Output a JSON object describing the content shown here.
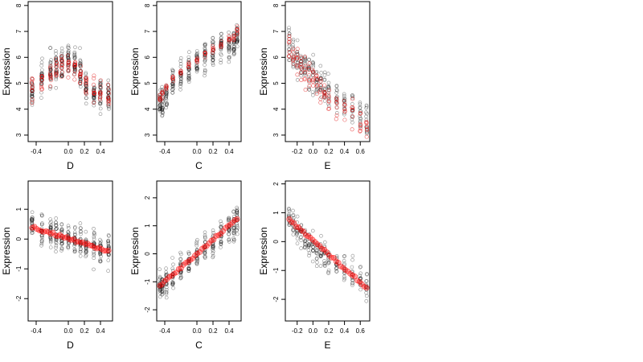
{
  "chart_data": [
    {
      "type": "scatter",
      "xlabel": "D",
      "ylabel": "Expression",
      "xlim": [
        -0.5,
        0.55
      ],
      "ylim": [
        2.75,
        8.15
      ],
      "xticks": [
        -0.4,
        0.0,
        0.2,
        0.4
      ],
      "xtick_labels": [
        "-0.4",
        "0.0",
        "0.2",
        "0.4"
      ],
      "yticks": [
        3,
        4,
        5,
        6,
        7,
        8
      ],
      "ytick_labels": [
        "3",
        "4",
        "5",
        "6",
        "7",
        "8"
      ],
      "x_levels": [
        -0.45,
        -0.33,
        -0.22,
        -0.15,
        -0.08,
        0.0,
        0.08,
        0.15,
        0.22,
        0.32,
        0.4,
        0.5
      ],
      "black_center": [
        4.7,
        5.1,
        5.5,
        5.6,
        5.7,
        5.9,
        5.8,
        5.5,
        5.0,
        4.6,
        4.6,
        4.5
      ],
      "black_spread": 1.1,
      "red_center": [
        4.8,
        5.0,
        5.4,
        5.6,
        5.6,
        5.7,
        5.6,
        5.4,
        5.0,
        4.8,
        4.6,
        4.5
      ],
      "red_spread": 0.9,
      "points_per_level": 26,
      "red_per_level": 10,
      "fit": null
    },
    {
      "type": "scatter",
      "xlabel": "C",
      "ylabel": "Expression",
      "xlim": [
        -0.5,
        0.55
      ],
      "ylim": [
        2.75,
        8.15
      ],
      "xticks": [
        -0.4,
        0.0,
        0.2,
        0.4
      ],
      "xtick_labels": [
        "-0.4",
        "0.0",
        "0.2",
        "0.4"
      ],
      "yticks": [
        3,
        4,
        5,
        6,
        7,
        8
      ],
      "ytick_labels": [
        "3",
        "4",
        "5",
        "6",
        "7",
        "8"
      ],
      "x_levels": [
        -0.46,
        -0.43,
        -0.38,
        -0.3,
        -0.2,
        -0.1,
        0.0,
        0.1,
        0.2,
        0.3,
        0.4,
        0.46,
        0.5
      ],
      "black_center": [
        4.2,
        4.2,
        4.5,
        5.0,
        5.3,
        5.6,
        5.8,
        6.0,
        6.2,
        6.4,
        6.4,
        6.5,
        6.8
      ],
      "black_spread": 0.95,
      "red_center": [
        4.4,
        4.6,
        4.9,
        5.2,
        5.4,
        5.7,
        5.9,
        6.1,
        6.3,
        6.5,
        6.7,
        6.8,
        7.0
      ],
      "red_spread": 0.25,
      "points_per_level": 24,
      "red_per_level": 6,
      "fit": null
    },
    {
      "type": "scatter",
      "xlabel": "E",
      "ylabel": "Expression",
      "xlim": [
        -0.35,
        0.72
      ],
      "ylim": [
        2.75,
        8.15
      ],
      "xticks": [
        -0.2,
        0.0,
        0.2,
        0.4,
        0.6
      ],
      "xtick_labels": [
        "-0.2",
        "0.0",
        "0.2",
        "0.4",
        "0.6"
      ],
      "yticks": [
        3,
        4,
        5,
        6,
        7,
        8
      ],
      "ytick_labels": [
        "3",
        "4",
        "5",
        "6",
        "7",
        "8"
      ],
      "x_levels": [
        -0.3,
        -0.25,
        -0.2,
        -0.15,
        -0.1,
        -0.05,
        0.0,
        0.05,
        0.1,
        0.15,
        0.2,
        0.3,
        0.4,
        0.5,
        0.6,
        0.68
      ],
      "black_center": [
        6.3,
        6.2,
        6.0,
        5.8,
        5.6,
        5.4,
        5.3,
        5.1,
        5.0,
        4.8,
        4.6,
        4.4,
        4.2,
        4.0,
        3.8,
        3.6
      ],
      "black_spread": 1.2,
      "red_center": [
        6.2,
        6.1,
        5.9,
        5.6,
        5.4,
        5.3,
        5.2,
        5.0,
        4.8,
        4.6,
        4.4,
        4.2,
        4.0,
        3.8,
        3.5,
        3.3
      ],
      "red_spread": 1.0,
      "points_per_level": 14,
      "red_per_level": 7,
      "fit": null
    },
    {
      "type": "scatter",
      "xlabel": "D",
      "ylabel": "Expression",
      "xlim": [
        -0.5,
        0.55
      ],
      "ylim": [
        -2.75,
        1.95
      ],
      "xticks": [
        -0.4,
        0.0,
        0.2,
        0.4
      ],
      "xtick_labels": [
        "-0.4",
        "0.0",
        "0.2",
        "0.4"
      ],
      "yticks": [
        -2,
        -1,
        0,
        1
      ],
      "ytick_labels": [
        "-2",
        "-1",
        "0",
        "1"
      ],
      "x_levels": [
        -0.45,
        -0.33,
        -0.22,
        -0.15,
        -0.08,
        0.0,
        0.08,
        0.15,
        0.22,
        0.32,
        0.4,
        0.5
      ],
      "black_center": [
        0.4,
        0.3,
        0.2,
        0.1,
        0.05,
        0.0,
        -0.05,
        -0.1,
        -0.2,
        -0.3,
        -0.35,
        -0.4
      ],
      "black_spread": 0.9,
      "red_center": null,
      "red_spread": 0,
      "points_per_level": 24,
      "red_per_level": 0,
      "fit": {
        "x": [
          -0.45,
          0.5
        ],
        "y": [
          0.4,
          -0.4
        ]
      }
    },
    {
      "type": "scatter",
      "xlabel": "C",
      "ylabel": "Expression",
      "xlim": [
        -0.5,
        0.55
      ],
      "ylim": [
        -2.4,
        2.6
      ],
      "xticks": [
        -0.4,
        0.0,
        0.2,
        0.4
      ],
      "xtick_labels": [
        "-0.4",
        "0.0",
        "0.2",
        "0.4"
      ],
      "yticks": [
        -2,
        -1,
        0,
        1,
        2
      ],
      "ytick_labels": [
        "-2",
        "-1",
        "0",
        "1",
        "2"
      ],
      "x_levels": [
        -0.46,
        -0.43,
        -0.38,
        -0.3,
        -0.2,
        -0.1,
        0.0,
        0.1,
        0.2,
        0.3,
        0.4,
        0.46,
        0.5
      ],
      "black_center": [
        -1.2,
        -1.1,
        -1.0,
        -0.7,
        -0.5,
        -0.2,
        0.0,
        0.2,
        0.4,
        0.6,
        0.9,
        1.0,
        1.2
      ],
      "black_spread": 0.9,
      "red_center": null,
      "red_spread": 0,
      "points_per_level": 22,
      "red_per_level": 0,
      "fit": {
        "x": [
          -0.46,
          0.5
        ],
        "y": [
          -1.15,
          1.25
        ]
      }
    },
    {
      "type": "scatter",
      "xlabel": "E",
      "ylabel": "Expression",
      "xlim": [
        -0.35,
        0.72
      ],
      "ylim": [
        -2.75,
        2.1
      ],
      "xticks": [
        -0.2,
        0.0,
        0.2,
        0.4,
        0.6
      ],
      "xtick_labels": [
        "-0.2",
        "0.0",
        "0.2",
        "0.4",
        "0.6"
      ],
      "yticks": [
        -2,
        -1,
        0,
        1,
        2
      ],
      "ytick_labels": [
        "-2",
        "-1",
        "0",
        "1",
        "2"
      ],
      "x_levels": [
        -0.3,
        -0.25,
        -0.2,
        -0.15,
        -0.1,
        -0.05,
        0.0,
        0.05,
        0.1,
        0.15,
        0.2,
        0.3,
        0.4,
        0.5,
        0.6,
        0.68
      ],
      "black_center": [
        0.8,
        0.7,
        0.5,
        0.3,
        0.1,
        0.0,
        -0.2,
        -0.3,
        -0.4,
        -0.5,
        -0.7,
        -0.9,
        -1.0,
        -1.2,
        -1.4,
        -1.6
      ],
      "black_spread": 0.9,
      "red_center": null,
      "red_spread": 0,
      "points_per_level": 14,
      "red_per_level": 0,
      "fit": {
        "x": [
          -0.3,
          0.68
        ],
        "y": [
          0.75,
          -1.6
        ]
      }
    }
  ],
  "colors": {
    "black_points": "#000000",
    "red_points": "#e00000",
    "fit_points": "#ff0000"
  }
}
